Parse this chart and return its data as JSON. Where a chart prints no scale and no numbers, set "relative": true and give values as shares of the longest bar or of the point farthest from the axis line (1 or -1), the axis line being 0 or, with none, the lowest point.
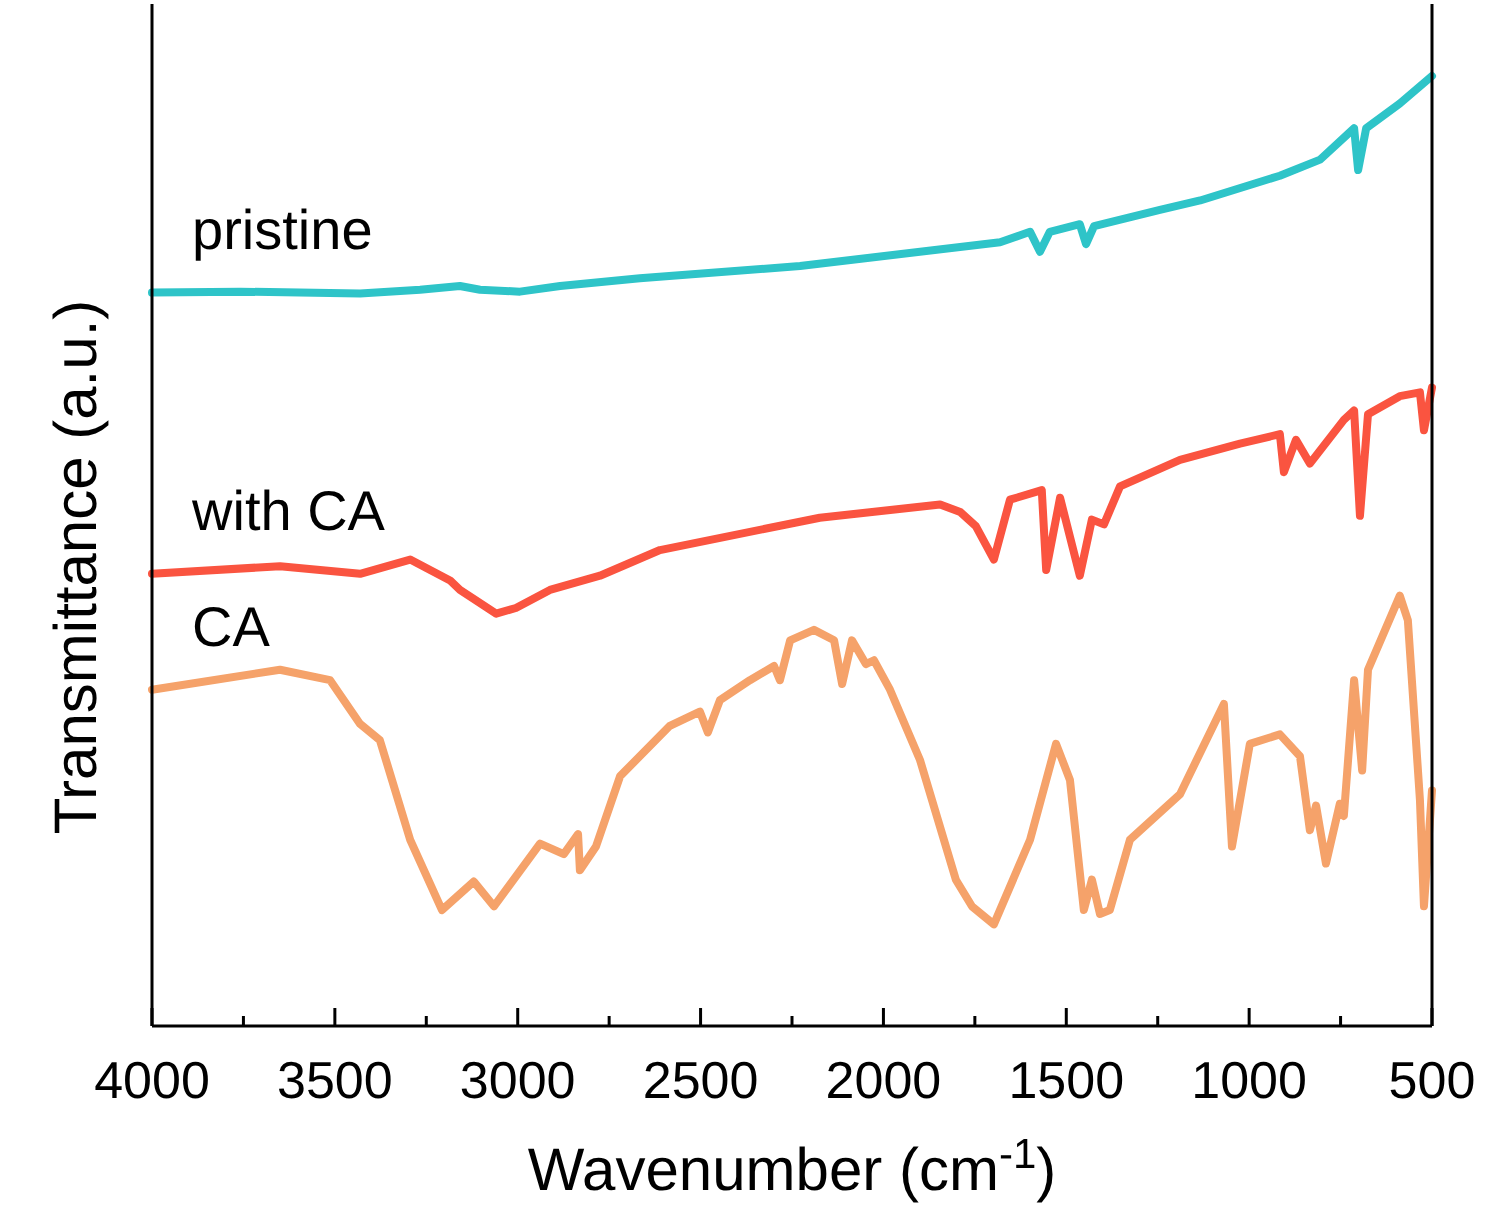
{
  "chart_data": {
    "type": "line",
    "relative": true,
    "xlabel": "Wavenumber (cm$^{-1}$)",
    "ylabel": "Transmittance (a.u.)",
    "xlim": [
      4000,
      500
    ],
    "xticks": [
      4000,
      {
        "value": 3750,
        "label": null
      },
      3500,
      {
        "value": 3250,
        "label": null
      },
      3000,
      {
        "value": 2750,
        "label": null
      },
      2500,
      {
        "value": 2250,
        "label": null
      },
      2000,
      {
        "value": 1750,
        "label": null
      },
      1500,
      {
        "value": 1250,
        "label": null
      },
      1000,
      {
        "value": 750,
        "label": null
      },
      500
    ],
    "grid": false,
    "marker": "none",
    "line_style": "solid",
    "series": [
      {
        "name": "pristine",
        "color": "#2ec4c8",
        "x": [
          4000,
          3759,
          3431,
          3267,
          3158,
          3103,
          2994,
          2884,
          2666,
          2228,
          1681,
          1599,
          1572,
          1545,
          1463,
          1446,
          1424,
          1244,
          1134,
          916,
          806,
          713,
          702,
          680,
          588,
          500
        ],
        "values": [
          0.772,
          0.773,
          0.771,
          0.775,
          0.779,
          0.775,
          0.773,
          0.779,
          0.787,
          0.8,
          0.825,
          0.836,
          0.815,
          0.836,
          0.844,
          0.823,
          0.842,
          0.859,
          0.869,
          0.895,
          0.912,
          0.945,
          0.901,
          0.945,
          0.971,
          1.0
        ]
      },
      {
        "name": "with CA",
        "color": "#fa5440",
        "x": [
          4000,
          3650,
          3431,
          3294,
          3185,
          3158,
          3059,
          3005,
          2912,
          2775,
          2611,
          2174,
          1845,
          1790,
          1747,
          1698,
          1654,
          1567,
          1555,
          1517,
          1463,
          1430,
          1397,
          1353,
          1189,
          1025,
          916,
          905,
          872,
          834,
          741,
          713,
          697,
          675,
          588,
          533,
          522,
          500
        ],
        "values": [
          0.476,
          0.484,
          0.476,
          0.491,
          0.469,
          0.459,
          0.434,
          0.44,
          0.459,
          0.474,
          0.501,
          0.535,
          0.549,
          0.541,
          0.526,
          0.491,
          0.554,
          0.564,
          0.48,
          0.556,
          0.474,
          0.533,
          0.528,
          0.568,
          0.596,
          0.613,
          0.623,
          0.583,
          0.617,
          0.592,
          0.638,
          0.648,
          0.537,
          0.644,
          0.663,
          0.667,
          0.627,
          0.672
        ]
      },
      {
        "name": "CA",
        "color": "#f5a26a",
        "x": [
          4000,
          3650,
          3513,
          3431,
          3377,
          3294,
          3207,
          3120,
          3065,
          2939,
          2874,
          2835,
          2830,
          2786,
          2720,
          2584,
          2502,
          2480,
          2447,
          2365,
          2299,
          2283,
          2255,
          2190,
          2135,
          2113,
          2086,
          2048,
          2026,
          1982,
          1900,
          1802,
          1758,
          1698,
          1599,
          1528,
          1490,
          1452,
          1430,
          1408,
          1381,
          1326,
          1189,
          1069,
          1047,
          998,
          916,
          861,
          834,
          817,
          790,
          752,
          741,
          713,
          691,
          675,
          588,
          566,
          533,
          522,
          500
        ],
        "values": [
          0.354,
          0.375,
          0.364,
          0.318,
          0.301,
          0.196,
          0.122,
          0.152,
          0.126,
          0.192,
          0.181,
          0.202,
          0.164,
          0.189,
          0.263,
          0.316,
          0.331,
          0.309,
          0.343,
          0.364,
          0.379,
          0.364,
          0.406,
          0.417,
          0.406,
          0.36,
          0.406,
          0.381,
          0.385,
          0.354,
          0.28,
          0.154,
          0.126,
          0.107,
          0.196,
          0.297,
          0.259,
          0.122,
          0.154,
          0.118,
          0.122,
          0.196,
          0.244,
          0.339,
          0.189,
          0.297,
          0.307,
          0.284,
          0.206,
          0.232,
          0.171,
          0.234,
          0.221,
          0.364,
          0.269,
          0.375,
          0.453,
          0.427,
          0.238,
          0.126,
          0.248
        ]
      }
    ]
  }
}
